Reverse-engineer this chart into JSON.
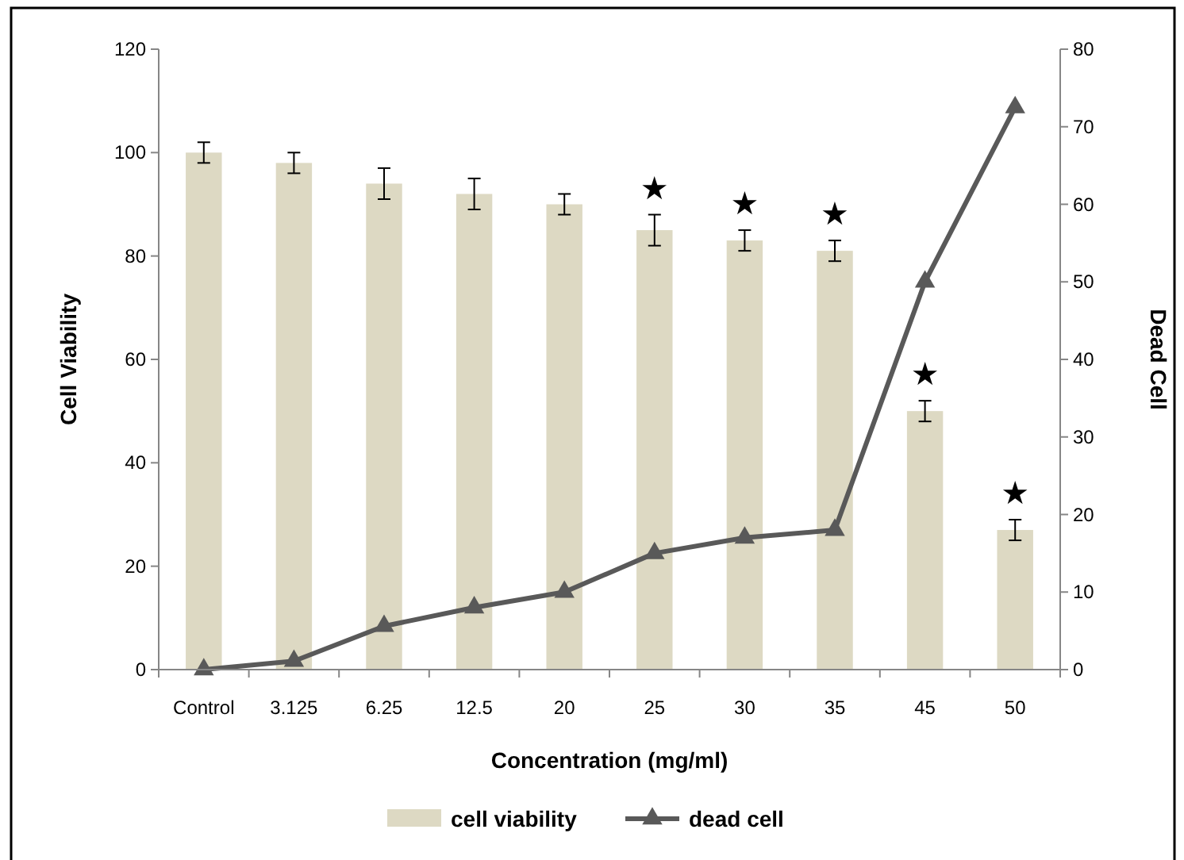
{
  "chart_data": {
    "type": "bar",
    "xlabel": "Concentration  (mg/ml)",
    "ylabel": "Cell Viability",
    "y2label": "Dead Cell",
    "categories": [
      "Control",
      "3.125",
      "6.25",
      "12.5",
      "20",
      "25",
      "30",
      "35",
      "45",
      "50"
    ],
    "series": [
      {
        "name": "cell viability",
        "color": "#ddd9c3",
        "values": [
          100,
          98,
          94,
          92,
          90,
          85,
          83,
          81,
          50,
          27
        ],
        "errors": [
          2,
          2,
          3,
          3,
          2,
          3,
          2,
          2,
          2,
          2
        ]
      },
      {
        "name": "dead cell",
        "type": "line",
        "axis": "y2",
        "color": "#595959",
        "marker": "triangle",
        "values": [
          0,
          1.1,
          5.6,
          8,
          10,
          15,
          17,
          18,
          50,
          72.5
        ]
      }
    ],
    "ylim": [
      0,
      120
    ],
    "yticks": [
      0,
      20,
      40,
      60,
      80,
      100,
      120
    ],
    "y2lim": [
      0,
      80
    ],
    "y2ticks": [
      0,
      10,
      20,
      30,
      40,
      50,
      60,
      70,
      80
    ],
    "grid": false,
    "legend": "bottom",
    "annotations": [
      {
        "text": "★",
        "x": "25",
        "y": 85
      },
      {
        "text": "★",
        "x": "30",
        "y": 83
      },
      {
        "text": "★",
        "x": "35",
        "y": 81
      },
      {
        "text": "★",
        "x": "45",
        "y": 50
      },
      {
        "text": "★",
        "x": "50",
        "y": 27
      }
    ]
  }
}
